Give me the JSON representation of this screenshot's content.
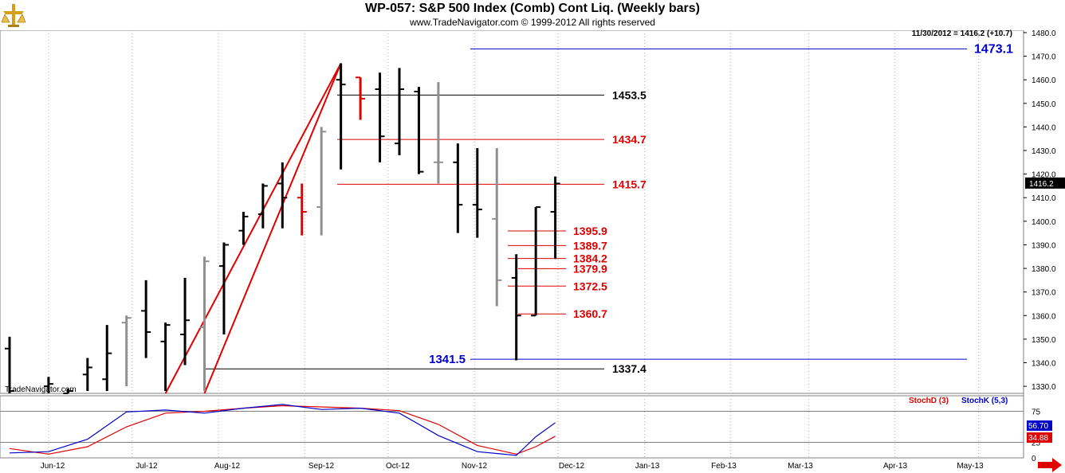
{
  "header": {
    "title": "WP-057:  S&P 500 Index (Comb) Cont Liq.  (Weekly bars)",
    "copyright": "www.TradeNavigator.com © 1999-2012 All rights reserved",
    "last_quote": "11/30/2012 = 1416.2 (+10.7)",
    "watermark": "TradeNavigator.com"
  },
  "colors": {
    "up_bar": "#000000",
    "down_bar_red": "#e00000",
    "inside_bar_gray": "#909090",
    "fib_line": "#e00000",
    "trend_line": "#e00000",
    "blue_line": "#0000cc",
    "stochD": "#e00000",
    "stochK": "#0000cc"
  },
  "chart_data": [
    {
      "type": "ohlc",
      "title": "S&P 500 Index (Comb) Cont Liq. (Weekly bars)",
      "x_tick_labels": [
        "Jun-12",
        "Jul-12",
        "Aug-12",
        "Sep-12",
        "Oct-12",
        "Nov-12",
        "Dec-12",
        "Jan-13",
        "Feb-13",
        "Mar-13",
        "Apr-13",
        "May-13"
      ],
      "y_tick_labels": [
        "1330.0",
        "1340.0",
        "1350.0",
        "1360.0",
        "1370.0",
        "1380.0",
        "1390.0",
        "1400.0",
        "1410.0",
        "1420.0",
        "1430.0",
        "1440.0",
        "1450.0",
        "1460.0",
        "1470.0",
        "1480.0"
      ],
      "ylim": [
        1327,
        1481
      ],
      "last_price_label": "1416.2",
      "bars": [
        {
          "week": "2012-05-18",
          "open": 1346,
          "high": 1351,
          "low": 1327,
          "close": 1328,
          "color": "black"
        },
        {
          "week": "2012-06-01",
          "open": 1330,
          "high": 1334,
          "low": 1327,
          "close": 1331,
          "color": "black"
        },
        {
          "week": "2012-06-08",
          "open": 1327,
          "high": 1329,
          "low": 1327,
          "close": 1328,
          "color": "black"
        },
        {
          "week": "2012-06-15",
          "open": 1335,
          "high": 1342,
          "low": 1328,
          "close": 1338,
          "color": "black"
        },
        {
          "week": "2012-06-22",
          "open": 1333,
          "high": 1356,
          "low": 1328,
          "close": 1344,
          "color": "black"
        },
        {
          "week": "2012-06-29",
          "open": 1357,
          "high": 1360,
          "low": 1330,
          "close": 1359,
          "color": "gray"
        },
        {
          "week": "2012-07-06",
          "open": 1362,
          "high": 1375,
          "low": 1342,
          "close": 1353,
          "color": "black"
        },
        {
          "week": "2012-07-13",
          "open": 1349,
          "high": 1357,
          "low": 1328,
          "close": 1356,
          "color": "black"
        },
        {
          "week": "2012-07-20",
          "open": 1352,
          "high": 1376,
          "low": 1339,
          "close": 1358,
          "color": "black"
        },
        {
          "week": "2012-07-27",
          "open": 1355,
          "high": 1385,
          "low": 1328,
          "close": 1383,
          "color": "gray"
        },
        {
          "week": "2012-08-03",
          "open": 1381,
          "high": 1391,
          "low": 1352,
          "close": 1390,
          "color": "black"
        },
        {
          "week": "2012-08-10",
          "open": 1396,
          "high": 1404,
          "low": 1390,
          "close": 1402,
          "color": "black"
        },
        {
          "week": "2012-08-17",
          "open": 1403,
          "high": 1416,
          "low": 1397,
          "close": 1415,
          "color": "black"
        },
        {
          "week": "2012-08-24",
          "open": 1416,
          "high": 1425,
          "low": 1397,
          "close": 1410,
          "color": "black"
        },
        {
          "week": "2012-08-31",
          "open": 1410,
          "high": 1416,
          "low": 1394,
          "close": 1404,
          "color": "red"
        },
        {
          "week": "2012-09-07",
          "open": 1406,
          "high": 1440,
          "low": 1394,
          "close": 1438,
          "color": "gray"
        },
        {
          "week": "2012-09-14",
          "open": 1460,
          "high": 1467,
          "low": 1422,
          "close": 1458,
          "color": "black"
        },
        {
          "week": "2012-09-21",
          "open": 1461,
          "high": 1461,
          "low": 1443,
          "close": 1452,
          "color": "red"
        },
        {
          "week": "2012-09-28",
          "open": 1456,
          "high": 1463,
          "low": 1425,
          "close": 1436,
          "color": "black"
        },
        {
          "week": "2012-10-05",
          "open": 1433,
          "high": 1465,
          "low": 1428,
          "close": 1456,
          "color": "black"
        },
        {
          "week": "2012-10-12",
          "open": 1455,
          "high": 1457,
          "low": 1420,
          "close": 1421,
          "color": "black"
        },
        {
          "week": "2012-10-19",
          "open": 1425,
          "high": 1459,
          "low": 1416,
          "close": 1425,
          "color": "gray"
        },
        {
          "week": "2012-10-26",
          "open": 1425,
          "high": 1433,
          "low": 1395,
          "close": 1407,
          "color": "black"
        },
        {
          "week": "2012-11-02",
          "open": 1407,
          "high": 1431,
          "low": 1393,
          "close": 1405,
          "color": "black"
        },
        {
          "week": "2012-11-09",
          "open": 1401,
          "high": 1431,
          "low": 1364,
          "close": 1375,
          "color": "gray"
        },
        {
          "week": "2012-11-16",
          "open": 1376,
          "high": 1386,
          "low": 1341,
          "close": 1360,
          "color": "black"
        },
        {
          "week": "2012-11-23",
          "open": 1360,
          "high": 1406,
          "low": 1360,
          "close": 1406,
          "color": "black"
        },
        {
          "week": "2012-11-30",
          "open": 1404,
          "high": 1419,
          "low": 1384,
          "close": 1416,
          "color": "black"
        }
      ],
      "horizontal_lines": [
        {
          "label": "1473.1",
          "value": 1473.1,
          "color": "blue",
          "from": "2012-10-26",
          "to": "2013-05-10"
        },
        {
          "label": "1453.5",
          "value": 1453.5,
          "color": "black",
          "from": "2012-09-14",
          "to": "2012-12-14"
        },
        {
          "label": "1434.7",
          "value": 1434.7,
          "color": "red",
          "from": "2012-09-14",
          "to": "2012-12-14"
        },
        {
          "label": "1415.7",
          "value": 1415.7,
          "color": "red",
          "from": "2012-09-14",
          "to": "2012-12-14"
        },
        {
          "label": "1395.9",
          "value": 1395.9,
          "color": "red",
          "from": "2012-11-16",
          "to": "2012-12-07"
        },
        {
          "label": "1389.7",
          "value": 1389.7,
          "color": "red",
          "from": "2012-11-16",
          "to": "2012-12-07"
        },
        {
          "label": "1384.2",
          "value": 1384.2,
          "color": "red",
          "from": "2012-11-16",
          "to": "2012-12-07"
        },
        {
          "label": "1379.9",
          "value": 1379.9,
          "color": "red",
          "from": "2012-11-16",
          "to": "2012-12-07"
        },
        {
          "label": "1372.5",
          "value": 1372.5,
          "color": "red",
          "from": "2012-11-16",
          "to": "2012-12-07"
        },
        {
          "label": "1360.7",
          "value": 1360.7,
          "color": "red",
          "from": "2012-11-16",
          "to": "2012-12-07"
        },
        {
          "label": "1341.5",
          "value": 1341.5,
          "color": "blue",
          "from": "2012-11-02",
          "to": "2013-05-10"
        },
        {
          "label": "1337.4",
          "value": 1337.4,
          "color": "black",
          "from": "2012-07-27",
          "to": "2012-12-14"
        }
      ],
      "trend_lines": [
        {
          "from_week": "2012-07-13",
          "from_value": 1327,
          "to_week": "2012-09-14",
          "to_value": 1467
        },
        {
          "from_week": "2012-07-27",
          "from_value": 1327,
          "to_week": "2012-09-14",
          "to_value": 1467
        }
      ]
    },
    {
      "type": "line",
      "legend": [
        "StochD (3)",
        "StochK (5,3)"
      ],
      "y_tick_labels": [
        "75",
        "25",
        "0"
      ],
      "ylim": [
        0,
        100
      ],
      "last_values": {
        "stochK": "56.70",
        "stochD": "34.88"
      },
      "series": [
        {
          "name": "StochD (3)",
          "color": "red",
          "values": [
            {
              "week": "2012-05-18",
              "value": 15
            },
            {
              "week": "2012-06-01",
              "value": 6
            },
            {
              "week": "2012-06-15",
              "value": 18
            },
            {
              "week": "2012-06-29",
              "value": 50
            },
            {
              "week": "2012-07-13",
              "value": 72
            },
            {
              "week": "2012-07-27",
              "value": 75
            },
            {
              "week": "2012-08-10",
              "value": 80
            },
            {
              "week": "2012-08-24",
              "value": 84
            },
            {
              "week": "2012-09-07",
              "value": 82
            },
            {
              "week": "2012-09-21",
              "value": 80
            },
            {
              "week": "2012-10-05",
              "value": 76
            },
            {
              "week": "2012-10-19",
              "value": 54
            },
            {
              "week": "2012-11-02",
              "value": 20
            },
            {
              "week": "2012-11-16",
              "value": 6
            },
            {
              "week": "2012-11-23",
              "value": 18
            },
            {
              "week": "2012-11-30",
              "value": 34.88
            }
          ]
        },
        {
          "name": "StochK (5,3)",
          "color": "blue",
          "values": [
            {
              "week": "2012-05-18",
              "value": 8
            },
            {
              "week": "2012-06-01",
              "value": 10
            },
            {
              "week": "2012-06-15",
              "value": 30
            },
            {
              "week": "2012-06-29",
              "value": 74
            },
            {
              "week": "2012-07-13",
              "value": 77
            },
            {
              "week": "2012-07-27",
              "value": 72
            },
            {
              "week": "2012-08-10",
              "value": 80
            },
            {
              "week": "2012-08-24",
              "value": 86
            },
            {
              "week": "2012-09-07",
              "value": 78
            },
            {
              "week": "2012-09-21",
              "value": 80
            },
            {
              "week": "2012-10-05",
              "value": 72
            },
            {
              "week": "2012-10-19",
              "value": 36
            },
            {
              "week": "2012-11-02",
              "value": 10
            },
            {
              "week": "2012-11-16",
              "value": 4
            },
            {
              "week": "2012-11-23",
              "value": 34
            },
            {
              "week": "2012-11-30",
              "value": 56.7
            }
          ]
        }
      ]
    }
  ]
}
